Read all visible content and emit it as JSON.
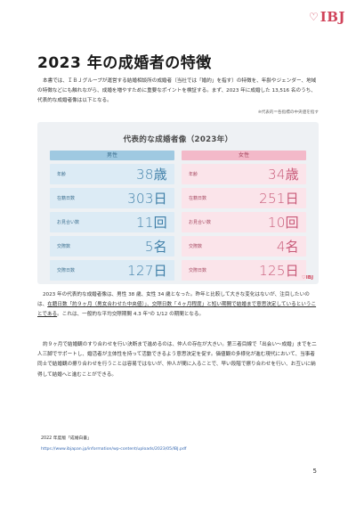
{
  "logo": {
    "text": "IBJ",
    "heart": "♡"
  },
  "title": "2023 年の成婚者の特徴",
  "para1": "本書では、ＩＢＪグループが運営する結婚相談所の成婚者（当社では「婚約」を指す）の特徴を、年齢やジェンダー、地域の特徴などにも触れながら、成婚を増やすために重要なポイントを検証する。まず、2023 年に成婚した 13,516 名のうち、代表的な成婚者像は以下となる。",
  "note": "※代表的＝各指標の中央値を指す",
  "infographic": {
    "title": "代表的な成婚者像（2023年）",
    "male_header": "男性",
    "female_header": "女性",
    "rows": [
      {
        "label": "年齢",
        "male": "38歳",
        "female": "34歳"
      },
      {
        "label": "在籍日数",
        "male": "303日",
        "female": "251日"
      },
      {
        "label": "お見合い数",
        "male": "11回",
        "female": "10回"
      },
      {
        "label": "交際数",
        "male": "5名",
        "female": "4名"
      },
      {
        "label": "交際日数",
        "male": "127日",
        "female": "125日"
      }
    ],
    "logo": "♡IBJ"
  },
  "para2": {
    "pre": "2023 年の代表的な成婚者像は、男性 38 歳、女性 34 歳となった。昨年と比較して大きな変化はないが、注目したいのは、",
    "underlined": "在籍日数「約９ヶ月（男女合わせた中央値）」、交際日数「４ヶ月程度」と短い期間で結婚まで意思決定しているということである",
    "post": "。これは、一般的な平均交際期間 4.3 年¹の 1/12 の期間となる。"
  },
  "para3": "約９ヶ月で結婚観のすり合わせを行い決断まで進めるのは、仲人の存在が大きい。第三者目線で「出会い～成婚」までを二人三脚でサポートし、婚活者が主体性を持って活動できるよう意思決定を促す。価値観の多様化が進む現代において、当事者同士で結婚観の擦り合わせを行うことは容易ではないが、仲人が間に入ることで、早い段階で擦り合わせを行い、お互いに納得して結婚へと進むことができる。",
  "source": "2022 年度版「成婚白書」",
  "source_url": "https://www.ibjapan.jp/information/wp-content/uploads/2023/05/IBJ.pdf",
  "page_number": "5"
}
